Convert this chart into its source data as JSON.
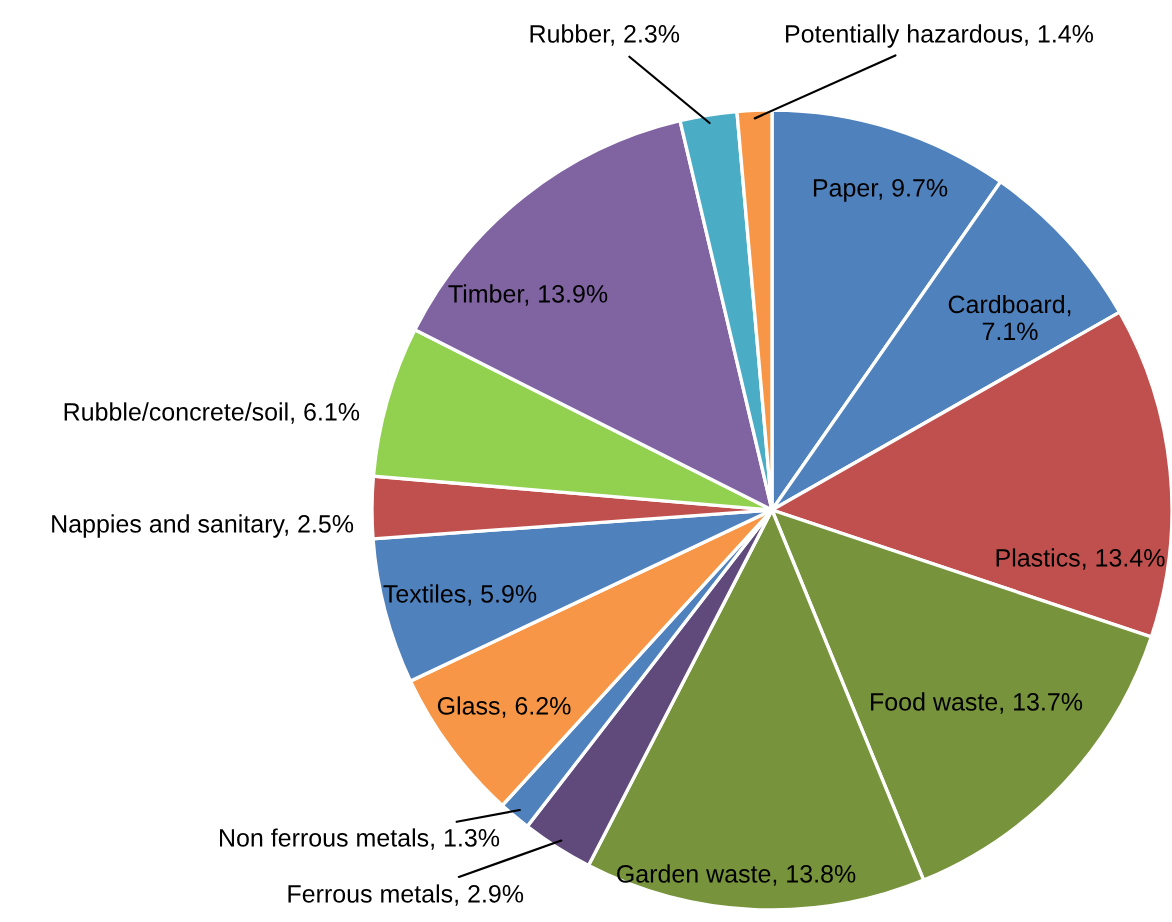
{
  "chart_data": {
    "type": "pie",
    "categories": [
      "Paper",
      "Cardboard",
      "Plastics",
      "Food waste",
      "Garden waste",
      "Ferrous metals",
      "Non ferrous metals",
      "Glass",
      "Textiles",
      "Nappies and sanitary",
      "Rubble/concrete/soil",
      "Timber",
      "Rubber",
      "Potentially hazardous"
    ],
    "values": [
      9.7,
      7.1,
      13.4,
      13.7,
      13.8,
      2.9,
      1.3,
      6.2,
      5.9,
      2.5,
      6.1,
      13.9,
      2.3,
      1.4
    ],
    "colors": [
      "#4f81bd",
      "#4f81bd",
      "#c0504d",
      "#77933c",
      "#77933c",
      "#604a7b",
      "#4f81bd",
      "#f79646",
      "#4f81bd",
      "#c0504d",
      "#92d050",
      "#8064a2",
      "#4bacc6",
      "#f79646"
    ],
    "value_labels": [
      ", 9.7%",
      ", 7.1%",
      ", 13.4%",
      ", 13.7%",
      ", 13.8%",
      ", 2.9%",
      ", 1.3%",
      ", 6.2%",
      ", 5.9%",
      ", 2.5%",
      ", 6.1%",
      ", 13.9%",
      ", 2.3%",
      ", 1.4%"
    ],
    "legend": false
  }
}
